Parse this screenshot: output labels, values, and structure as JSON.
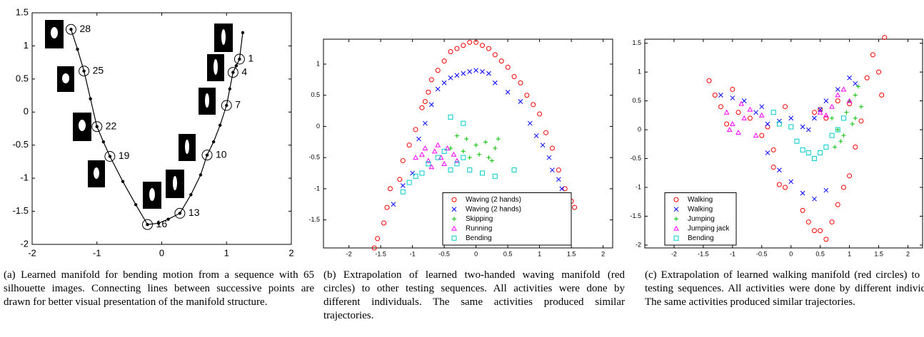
{
  "chart_data": [
    {
      "type": "line",
      "xlim": [
        -2,
        2
      ],
      "ylim": [
        -2,
        1.5
      ],
      "xticks": [
        -2,
        -1,
        0,
        1,
        2
      ],
      "yticks": [
        -2,
        -1.5,
        -1,
        -0.5,
        0,
        0.5,
        1,
        1.5
      ],
      "series": [
        {
          "color": "#000000",
          "x": [
            1.25,
            1.2,
            1.15,
            1.1,
            1.05,
            1.0,
            0.9,
            0.8,
            0.7,
            0.6,
            0.45,
            0.28,
            0.1,
            -0.05,
            -0.22,
            -0.4,
            -0.6,
            -0.8,
            -0.9,
            -1.0,
            -1.1,
            -1.2,
            -1.3,
            -1.4
          ],
          "y": [
            1.2,
            0.8,
            0.7,
            0.6,
            0.35,
            0.1,
            -0.2,
            -0.45,
            -0.65,
            -0.95,
            -1.25,
            -1.53,
            -1.62,
            -1.68,
            -1.7,
            -1.4,
            -1.05,
            -0.67,
            -0.45,
            -0.22,
            0.2,
            0.62,
            0.95,
            1.25
          ]
        }
      ],
      "annotations": [
        {
          "label": "1",
          "x": 1.2,
          "y": 0.8
        },
        {
          "label": "4",
          "x": 1.1,
          "y": 0.6
        },
        {
          "label": "7",
          "x": 1.0,
          "y": 0.1
        },
        {
          "label": "10",
          "x": 0.7,
          "y": -0.65
        },
        {
          "label": "13",
          "x": 0.28,
          "y": -1.53
        },
        {
          "label": "16",
          "x": -0.22,
          "y": -1.7
        },
        {
          "label": "19",
          "x": -0.8,
          "y": -0.67
        },
        {
          "label": "22",
          "x": -1.0,
          "y": -0.22
        },
        {
          "label": "25",
          "x": -1.2,
          "y": 0.62
        },
        {
          "label": "28",
          "x": -1.4,
          "y": 1.25
        }
      ]
    },
    {
      "type": "scatter",
      "xlim": [
        -2.4,
        2.15
      ],
      "ylim": [
        -1.95,
        1.4
      ],
      "xticks": [
        -2,
        -1.5,
        -1,
        -0.5,
        0,
        0.5,
        1,
        1.5,
        2
      ],
      "yticks": [
        -1.5,
        -1,
        -0.5,
        0,
        0.5,
        1
      ],
      "legend": "lower right",
      "series": [
        {
          "name": "Waving (2 hands)",
          "color": "#ff0000",
          "marker": "o",
          "x": [
            -1.6,
            -1.55,
            -1.45,
            -1.4,
            -1.35,
            -1.2,
            -1.15,
            -1.05,
            -0.95,
            -0.85,
            -0.8,
            -0.75,
            -0.7,
            -0.6,
            -0.5,
            -0.4,
            -0.3,
            -0.2,
            -0.1,
            0,
            0.1,
            0.2,
            0.3,
            0.4,
            0.5,
            0.6,
            0.7,
            0.8,
            0.9,
            1.0,
            1.1,
            1.2,
            1.3,
            1.4,
            1.5,
            1.55
          ],
          "y": [
            -1.95,
            -1.8,
            -1.55,
            -1.3,
            -1.0,
            -0.85,
            -0.55,
            -0.3,
            -0.05,
            0.3,
            0.4,
            0.55,
            0.75,
            0.9,
            1.05,
            1.2,
            1.25,
            1.3,
            1.35,
            1.35,
            1.3,
            1.25,
            1.15,
            1.05,
            0.95,
            0.8,
            0.7,
            0.5,
            0.35,
            0.2,
            -0.1,
            -0.35,
            -0.7,
            -1.0,
            -1.2,
            -1.3
          ]
        },
        {
          "name": "Waving (2 hands)",
          "color": "#0000ff",
          "marker": "x",
          "x": [
            -1.3,
            -1.15,
            -1.0,
            -0.9,
            -0.8,
            -0.7,
            -0.6,
            -0.5,
            -0.4,
            -0.3,
            -0.2,
            -0.1,
            0,
            0.1,
            0.2,
            0.3,
            0.5,
            0.7,
            0.85,
            0.95,
            1.05,
            1.15,
            1.2,
            1.3,
            1.35
          ],
          "y": [
            -1.25,
            -0.95,
            -0.75,
            -0.2,
            0.05,
            0.35,
            0.6,
            0.7,
            0.78,
            0.82,
            0.85,
            0.88,
            0.9,
            0.88,
            0.85,
            0.7,
            0.55,
            0.4,
            0.05,
            -0.15,
            -0.3,
            -0.5,
            -0.7,
            -0.85,
            -1.0
          ]
        },
        {
          "name": "Skipping",
          "color": "#00c000",
          "marker": "+",
          "x": [
            -0.4,
            -0.3,
            -0.2,
            -0.15,
            -0.1,
            0,
            0.05,
            0.15,
            0.2,
            0.3,
            0.35,
            0.25
          ],
          "y": [
            -0.35,
            -0.15,
            -0.4,
            -0.2,
            -0.5,
            -0.3,
            -0.45,
            -0.25,
            -0.5,
            -0.35,
            -0.2,
            -0.55
          ]
        },
        {
          "name": "Running",
          "color": "#ff00ff",
          "marker": "^",
          "x": [
            -0.95,
            -0.85,
            -0.75,
            -0.65,
            -0.55,
            -0.45,
            -0.35,
            -0.3,
            -0.5,
            -0.7,
            -0.8,
            -0.6
          ],
          "y": [
            -0.5,
            -0.45,
            -0.55,
            -0.4,
            -0.5,
            -0.35,
            -0.45,
            -0.55,
            -0.6,
            -0.65,
            -0.35,
            -0.3
          ]
        },
        {
          "name": "Bending",
          "color": "#00cccc",
          "marker": "s",
          "x": [
            -1.15,
            -1.05,
            -0.95,
            -0.85,
            -0.75,
            -0.6,
            -0.5,
            -0.4,
            -0.3,
            -0.2,
            -0.1,
            0.1,
            0.3,
            0.6,
            -0.4,
            -0.2
          ],
          "y": [
            -1.05,
            -0.9,
            -0.8,
            -0.75,
            -0.6,
            -0.5,
            -0.4,
            -0.7,
            -0.6,
            -0.5,
            -0.7,
            -0.75,
            -0.8,
            -0.7,
            0.15,
            0.05
          ]
        }
      ]
    },
    {
      "type": "scatter",
      "xlim": [
        -2.5,
        2.25
      ],
      "ylim": [
        -2.05,
        1.57
      ],
      "xticks": [
        -2,
        -1.5,
        -1,
        -0.5,
        0,
        0.5,
        1,
        1.5,
        2
      ],
      "yticks": [
        -2,
        -1.5,
        -1,
        -0.5,
        0,
        0.5,
        1,
        1.5
      ],
      "legend": "lower left",
      "series": [
        {
          "name": "Walking",
          "color": "#ff0000",
          "marker": "o",
          "x": [
            -1.4,
            -1.3,
            -1.2,
            -1.1,
            -1.0,
            -0.9,
            -0.7,
            -0.5,
            -0.3,
            -0.2,
            -0.1,
            0.2,
            0.3,
            0.4,
            0.5,
            0.6,
            0.7,
            0.8,
            0.9,
            1.0,
            1.1,
            1.2,
            1.3,
            1.4,
            1.5,
            1.6,
            1.55,
            -0.3,
            -0.4,
            -0.1,
            0.4,
            0.8,
            0.5,
            0.6,
            1.0
          ],
          "y": [
            0.85,
            0.6,
            0.4,
            0.1,
            0.7,
            0.3,
            0.2,
            -0.1,
            -0.65,
            -0.95,
            -1.0,
            -1.4,
            -1.6,
            -1.75,
            -1.75,
            -1.9,
            -1.6,
            -1.3,
            -1.0,
            -0.8,
            -0.3,
            0.15,
            0.9,
            1.3,
            1.0,
            1.6,
            0.6,
            -0.35,
            0.05,
            0.4,
            0.3,
            0.5,
            0.35,
            0.2,
            0.45
          ]
        },
        {
          "name": "Walking",
          "color": "#0000ff",
          "marker": "x",
          "x": [
            -1.2,
            -1.0,
            -0.8,
            -0.6,
            -0.4,
            -0.2,
            0,
            0.2,
            0.3,
            0.4,
            0.5,
            0.6,
            0.8,
            1.0,
            1.1,
            -0.4,
            -0.2,
            0,
            0.2,
            0.4,
            0.6,
            -0.5
          ],
          "y": [
            0.6,
            0.55,
            0.5,
            0.3,
            0.1,
            0.15,
            0.2,
            0.05,
            0.0,
            0.2,
            0.35,
            0.5,
            0.7,
            0.9,
            0.8,
            -0.4,
            -0.7,
            -0.9,
            -1.1,
            -1.2,
            -1.05,
            0.4
          ]
        },
        {
          "name": "Jumping",
          "color": "#00c000",
          "marker": "+",
          "x": [
            0.7,
            0.8,
            0.9,
            0.95,
            1.0,
            1.1,
            1.15,
            1.2,
            1.05,
            0.85,
            0.75,
            1.1
          ],
          "y": [
            0.2,
            0.0,
            -0.1,
            0.3,
            0.5,
            0.6,
            0.75,
            0.4,
            0.1,
            -0.2,
            -0.3,
            0.2
          ]
        },
        {
          "name": "Jumping jack",
          "color": "#ff00ff",
          "marker": "^",
          "x": [
            -1.1,
            -1.0,
            -0.9,
            -0.8,
            -0.7,
            -0.6,
            -0.5,
            -1.05,
            -0.85,
            0.6,
            0.7,
            0.8,
            0.9,
            1.0,
            0.5
          ],
          "y": [
            0.3,
            0.1,
            -0.05,
            0.2,
            0.35,
            -0.1,
            0.25,
            0.0,
            0.45,
            0.25,
            0.4,
            0.6,
            0.7,
            0.5,
            0.3
          ]
        },
        {
          "name": "Bending",
          "color": "#00cccc",
          "marker": "s",
          "x": [
            -0.3,
            -0.2,
            0,
            0.1,
            0.2,
            0.3,
            0.4,
            0.5,
            0.6,
            0.7,
            0.8,
            0.9
          ],
          "y": [
            0.3,
            0.1,
            0.05,
            -0.2,
            -0.35,
            -0.4,
            -0.5,
            -0.4,
            -0.3,
            -0.1,
            0.0,
            0.2
          ]
        }
      ]
    }
  ],
  "captions": [
    "(a) Learned manifold for bending motion from a sequence with 65 silhouette images. Connecting lines between successive points are drawn for better visual presentation of the manifold structure.",
    "(b) Extrapolation of learned two-handed waving manifold (red circles) to other testing sequences. All activities were done by different individuals. The same activities produced similar trajectories.",
    "(c) Extrapolation of learned walking manifold (red circles) to other testing sequences. All activities were done by different individuals. The same activities produced similar trajectories."
  ]
}
